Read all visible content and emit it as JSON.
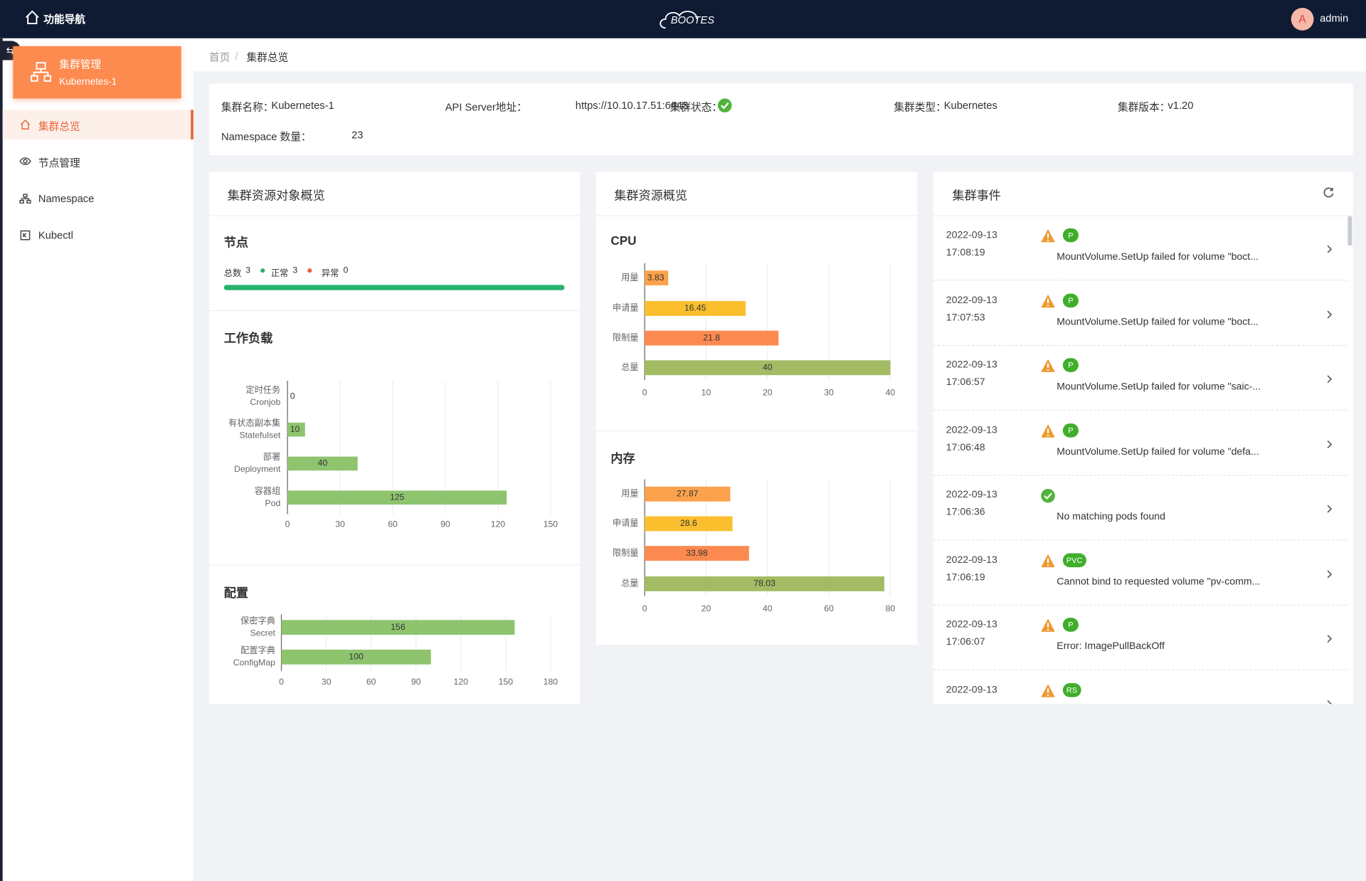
{
  "header": {
    "nav": "功能导航",
    "logo": "BOOTES",
    "avatar": "A",
    "user": "admin"
  },
  "sidebar": {
    "cluster_title": "集群管理",
    "cluster_name": "Kubernetes-1",
    "menu": [
      "集群总览",
      "节点管理",
      "Namespace",
      "Kubectl"
    ],
    "active": 0
  },
  "breadcrumb": [
    "首页",
    "集群总览"
  ],
  "cluster_info": [
    {
      "label": "集群名称：",
      "value": "Kubernetes-1"
    },
    {
      "label": "API Server地址：",
      "value": "https://10.10.17.51:6443"
    },
    {
      "label": "集群状态：",
      "status": "success"
    },
    {
      "label": "集群类型：",
      "value": "Kubernetes"
    },
    {
      "label": "集群版本：",
      "value": "v1.20"
    },
    {
      "label": "Namespace 数量：",
      "value": "23"
    }
  ],
  "resources": {
    "title": "集群资源对象概览",
    "nodes": {
      "title": "节点",
      "total_label": "总数",
      "total": 3,
      "normal_label": "正常",
      "normal": 3,
      "abnormal_label": "异常",
      "abnormal": 0
    },
    "workload": {
      "type": "bar",
      "orientation": "horizontal",
      "title": "工作负载",
      "categories": [
        [
          "定时任务",
          "Cronjob"
        ],
        [
          "有状态副本集",
          "Statefulset"
        ],
        [
          "部署",
          "Deployment"
        ],
        [
          "容器组",
          "Pod"
        ]
      ],
      "values": [
        0,
        10,
        40,
        125
      ],
      "color": "#8fc46f",
      "xlim": [
        0,
        150
      ],
      "xticks": [
        0,
        30,
        60,
        90,
        120,
        150
      ],
      "grid": true
    },
    "config": {
      "type": "bar",
      "orientation": "horizontal",
      "title": "配置",
      "categories": [
        [
          "保密字典",
          "Secret"
        ],
        [
          "配置字典",
          "ConfigMap"
        ]
      ],
      "values": [
        156,
        100
      ],
      "color": "#8fc46f",
      "xlim": [
        0,
        180
      ],
      "xticks": [
        0,
        30,
        60,
        90,
        120,
        150,
        180
      ],
      "grid": true
    }
  },
  "usage": {
    "title": "集群资源概览",
    "cpu": {
      "type": "bar",
      "orientation": "horizontal",
      "title": "CPU",
      "categories": [
        "用量",
        "申请量",
        "限制量",
        "总量"
      ],
      "values": [
        3.83,
        16.45,
        21.8,
        40
      ],
      "colors": [
        "#fca24c",
        "#fbbf2e",
        "#fc8a50",
        "#a3bb63"
      ],
      "xlim": [
        0,
        40
      ],
      "xticks": [
        0,
        10,
        20,
        30,
        40
      ],
      "grid": true
    },
    "memory": {
      "type": "bar",
      "orientation": "horizontal",
      "title": "内存",
      "categories": [
        "用量",
        "申请量",
        "限制量",
        "总量"
      ],
      "values": [
        27.87,
        28.6,
        33.98,
        78.03
      ],
      "colors": [
        "#fca24c",
        "#fbbf2e",
        "#fc8a50",
        "#a3bb63"
      ],
      "xlim": [
        0,
        80
      ],
      "xticks": [
        0,
        20,
        40,
        60,
        80
      ],
      "grid": true
    }
  },
  "events": {
    "title": "集群事件",
    "items": [
      {
        "date": "2022-09-13",
        "time": "17:08:19",
        "level": "warning",
        "tag": "P",
        "message": "MountVolume.SetUp failed for volume \"boct..."
      },
      {
        "date": "2022-09-13",
        "time": "17:07:53",
        "level": "warning",
        "tag": "P",
        "message": "MountVolume.SetUp failed for volume \"boct..."
      },
      {
        "date": "2022-09-13",
        "time": "17:06:57",
        "level": "warning",
        "tag": "P",
        "message": "MountVolume.SetUp failed for volume \"saic-..."
      },
      {
        "date": "2022-09-13",
        "time": "17:06:48",
        "level": "warning",
        "tag": "P",
        "message": "MountVolume.SetUp failed for volume \"defa..."
      },
      {
        "date": "2022-09-13",
        "time": "17:06:36",
        "level": "success",
        "message": "No matching pods found"
      },
      {
        "date": "2022-09-13",
        "time": "17:06:19",
        "level": "warning",
        "tag": "PVC",
        "message": "Cannot bind to requested volume \"pv-comm..."
      },
      {
        "date": "2022-09-13",
        "time": "17:06:07",
        "level": "warning",
        "tag": "P",
        "message": "Error: ImagePullBackOff"
      },
      {
        "date": "2022-09-13",
        "level": "warning",
        "tag": "RS"
      }
    ]
  }
}
